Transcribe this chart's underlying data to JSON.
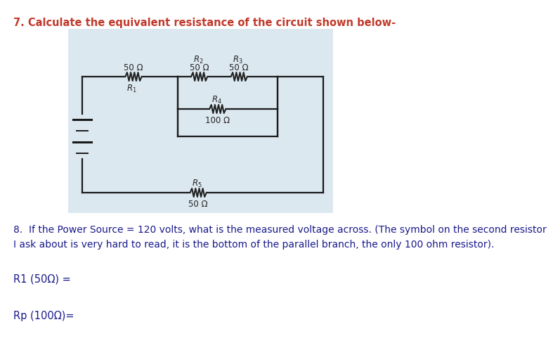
{
  "title": "7. Calculate the equivalent resistance of the circuit shown below-",
  "title_color": "#c0392b",
  "title_fontsize": 10.5,
  "bg_color": "#ffffff",
  "circuit_bg": "#dce8f0",
  "question8": "8.  If the Power Source = 120 volts, what is the measured voltage across. (The symbol on the second resistor\nI ask about is very hard to read, it is the bottom of the parallel branch, the only 100 ohm resistor).",
  "q8_color": "#1a1a8c",
  "q8_fontsize": 10,
  "answer1_label": "R1 (50Ω) =",
  "answer2_label": "Rp (100Ω)=",
  "answer_fontsize": 10.5,
  "answer_color": "#1a1a8c",
  "wire_color": "#1a1a1a",
  "label_color": "#222222",
  "resistor_color": "#222222"
}
